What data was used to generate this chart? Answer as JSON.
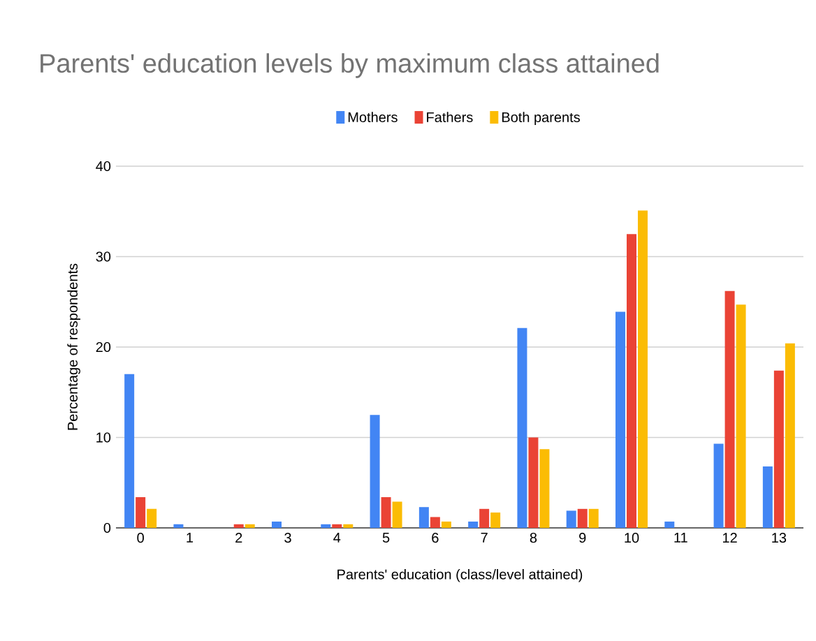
{
  "chart_data": {
    "type": "bar",
    "title": "Parents' education levels by maximum class attained",
    "xlabel": "Parents' education (class/level attained)",
    "ylabel": "Percentage of respondents",
    "categories": [
      "0",
      "1",
      "2",
      "3",
      "4",
      "5",
      "6",
      "7",
      "8",
      "9",
      "10",
      "11",
      "12",
      "13"
    ],
    "series": [
      {
        "name": "Mothers",
        "color": "#4285f4",
        "values": [
          17.0,
          0.4,
          0,
          0.7,
          0.4,
          12.5,
          2.3,
          0.7,
          22.1,
          1.9,
          23.9,
          0.7,
          9.3,
          6.8
        ]
      },
      {
        "name": "Fathers",
        "color": "#ea4335",
        "values": [
          3.4,
          0,
          0.4,
          0,
          0.4,
          3.4,
          1.2,
          2.1,
          10.0,
          2.1,
          32.5,
          0,
          26.2,
          17.4
        ]
      },
      {
        "name": "Both parents",
        "color": "#fbbc04",
        "values": [
          2.1,
          0,
          0.4,
          0,
          0.4,
          2.9,
          0.7,
          1.7,
          8.7,
          2.1,
          35.1,
          0,
          24.7,
          20.4
        ]
      }
    ],
    "ylim": [
      0,
      40
    ],
    "yticks": [
      0,
      10,
      20,
      30,
      40
    ],
    "grid": "y",
    "legend": "top"
  }
}
